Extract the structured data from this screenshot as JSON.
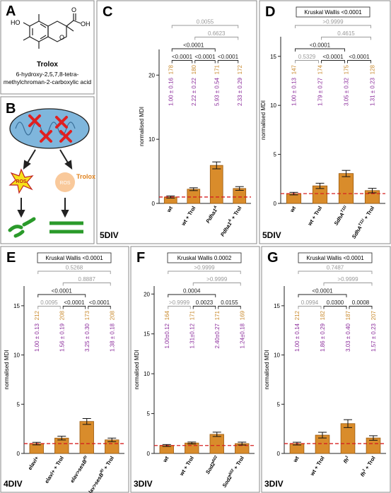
{
  "panel_a": {
    "label": "A",
    "structure_labels": [
      "HO",
      "O",
      "OH"
    ],
    "name": "Trolox",
    "description": [
      "6-hydroxy-2,5,7,8-tetra-",
      "methylchroman-2-carboxylic acid"
    ]
  },
  "panel_b": {
    "label": "B",
    "ros_labels": [
      "ROS",
      "ROS"
    ],
    "trolox": "Trolox"
  },
  "chart_data": [
    {
      "type": "bar",
      "panel": "C",
      "div": "5DIV",
      "y_label": "normalised MDI",
      "categories": [
        "wt",
        "wt + Trol",
        "Pdha1",
        "Pdha1"
      ],
      "category_sup": [
        null,
        null,
        "A",
        "A"
      ],
      "category_suffix": [
        null,
        null,
        null,
        " + Trol"
      ],
      "values": [
        1.0,
        2.22,
        5.93,
        2.33
      ],
      "errors": [
        0.16,
        0.22,
        0.54,
        0.29
      ],
      "value_labels": [
        "1.00 ± 0.16",
        "2.22 ± 0.22",
        "5.93 ± 0.54",
        "2.33 ± 0.29"
      ],
      "counts": [
        178,
        180,
        171,
        172
      ],
      "color": "#d98c2b",
      "ref_line": 1,
      "ref_line_color": "#d62020",
      "ylim": [
        0,
        24
      ],
      "yticks": [
        0,
        10,
        20
      ],
      "comparisons": [
        {
          "pair": [
            0,
            3
          ],
          "label": "0.0055",
          "color": "#999999"
        },
        {
          "pair": [
            1,
            3
          ],
          "label": "0.6623",
          "color": "#999999"
        },
        {
          "pair": [
            0,
            2
          ],
          "label": "<0.0001",
          "color": "#222222"
        },
        {
          "pair": [
            0,
            1
          ],
          "label": "<0.0001",
          "color": "#222222"
        },
        {
          "pair": [
            1,
            2
          ],
          "label": "<0.0001",
          "color": "#222222"
        },
        {
          "pair": [
            2,
            3
          ],
          "label": "<0.0001",
          "color": "#222222"
        }
      ]
    },
    {
      "type": "bar",
      "panel": "D",
      "div": "5DIV",
      "test": "Kruskal Wallis <0.0001",
      "y_label": "normalised MDI",
      "categories": [
        "wt",
        "wt + Trol",
        "SdhA",
        "SdhA"
      ],
      "category_sup": [
        null,
        null,
        "T11I",
        "T11I"
      ],
      "category_suffix": [
        null,
        null,
        null,
        " + Trol"
      ],
      "values": [
        1.0,
        1.79,
        3.05,
        1.31
      ],
      "errors": [
        0.13,
        0.27,
        0.32,
        0.23
      ],
      "value_labels": [
        "1.00 ± 0.13",
        "1.79 ± 0.27",
        "3.05 ± 0.32",
        "1.31 ± 0.23"
      ],
      "counts": [
        147,
        174,
        175,
        128
      ],
      "color": "#d98c2b",
      "ref_line": 1,
      "ref_line_color": "#d62020",
      "ylim": [
        0,
        17
      ],
      "yticks": [
        0,
        5,
        10,
        15
      ],
      "comparisons": [
        {
          "pair": [
            0,
            3
          ],
          "label": ">0.9999",
          "color": "#999999"
        },
        {
          "pair": [
            1,
            3
          ],
          "label": "0.4615",
          "color": "#999999"
        },
        {
          "pair": [
            0,
            2
          ],
          "label": "<0.0001",
          "color": "#222222"
        },
        {
          "pair": [
            0,
            1
          ],
          "label": "0.5329",
          "color": "#999999"
        },
        {
          "pair": [
            1,
            2
          ],
          "label": "<0.0001",
          "color": "#222222"
        },
        {
          "pair": [
            2,
            3
          ],
          "label": "<0.0001",
          "color": "#222222"
        }
      ]
    },
    {
      "type": "bar",
      "panel": "E",
      "div": "4DIV",
      "test": "Kruskal Wallis <0.0001",
      "y_label": "normalised MDI",
      "categories": [
        "elav/+",
        "elav/+ + Trol",
        "elav>sesB",
        "elav>sesB"
      ],
      "category_sup": [
        null,
        null,
        "RI",
        "RI"
      ],
      "category_suffix": [
        null,
        null,
        null,
        " + Trol"
      ],
      "values": [
        1.0,
        1.56,
        3.25,
        1.38
      ],
      "errors": [
        0.13,
        0.19,
        0.3,
        0.18
      ],
      "value_labels": [
        "1.00 ± 0.13",
        "1.56 ± 0.19",
        "3.25 ± 0.30",
        "1.38 ± 0.18"
      ],
      "counts": [
        212,
        208,
        173,
        208
      ],
      "color": "#d98c2b",
      "ref_line": 1,
      "ref_line_color": "#d62020",
      "ylim": [
        0,
        17
      ],
      "yticks": [
        0,
        5,
        10,
        15
      ],
      "comparisons": [
        {
          "pair": [
            0,
            3
          ],
          "label": "0.5268",
          "color": "#999999"
        },
        {
          "pair": [
            1,
            3
          ],
          "label": "0.8887",
          "color": "#999999"
        },
        {
          "pair": [
            0,
            2
          ],
          "label": "<0.0001",
          "color": "#222222"
        },
        {
          "pair": [
            0,
            1
          ],
          "label": "0.0095",
          "color": "#999999"
        },
        {
          "pair": [
            1,
            2
          ],
          "label": "<0.0001",
          "color": "#222222"
        },
        {
          "pair": [
            2,
            3
          ],
          "label": "<0.0001",
          "color": "#222222"
        }
      ]
    },
    {
      "type": "bar",
      "panel": "F",
      "div": "3DIV",
      "test": "Kruskal Wallis 0.0002",
      "y_label": "normalised MDI",
      "categories": [
        "wt",
        "wt + Trol",
        "Sod2",
        "Sod2"
      ],
      "category_sup": [
        null,
        null,
        "Δ02",
        "Δ02"
      ],
      "category_suffix": [
        null,
        null,
        null,
        " + Trol"
      ],
      "values": [
        1.0,
        1.31,
        2.4,
        1.24
      ],
      "errors": [
        0.12,
        0.12,
        0.27,
        0.18
      ],
      "value_labels": [
        "1.00±0.12",
        "1.31±0.12",
        "2.40±0.27",
        "1.24±0.18"
      ],
      "counts": [
        164,
        171,
        171,
        169
      ],
      "color": "#d98c2b",
      "ref_line": 1,
      "ref_line_color": "#d62020",
      "ylim": [
        0,
        21
      ],
      "yticks": [
        0,
        5,
        10,
        15,
        20
      ],
      "comparisons": [
        {
          "pair": [
            0,
            3
          ],
          "label": ">0.9999",
          "color": "#999999"
        },
        {
          "pair": [
            1,
            3
          ],
          "label": ">0.9999",
          "color": "#999999"
        },
        {
          "pair": [
            0,
            2
          ],
          "label": "0.0004",
          "color": "#222222"
        },
        {
          "pair": [
            0,
            1
          ],
          "label": ">0.9999",
          "color": "#999999"
        },
        {
          "pair": [
            1,
            2
          ],
          "label": "0.0023",
          "color": "#222222"
        },
        {
          "pair": [
            2,
            3
          ],
          "label": "0.0155",
          "color": "#222222"
        }
      ]
    },
    {
      "type": "bar",
      "panel": "G",
      "div": "3DIV",
      "test": "Kruskal Wallis <0.0001",
      "y_label": "normalised MDI",
      "categories": [
        "wt",
        "wt + Trol",
        "fh",
        "fh"
      ],
      "category_sup": [
        null,
        null,
        "1",
        "1"
      ],
      "category_suffix": [
        null,
        null,
        null,
        " + Trol"
      ],
      "values": [
        1.0,
        1.86,
        3.03,
        1.57
      ],
      "errors": [
        0.14,
        0.29,
        0.4,
        0.23
      ],
      "value_labels": [
        "1.00 ± 0.14",
        "1.86 ± 0.29",
        "3.03 ± 0.40",
        "1.57 ± 0.23"
      ],
      "counts": [
        212,
        182,
        187,
        207
      ],
      "color": "#d98c2b",
      "ref_line": 1,
      "ref_line_color": "#d62020",
      "ylim": [
        0,
        17
      ],
      "yticks": [
        0,
        5,
        10,
        15
      ],
      "comparisons": [
        {
          "pair": [
            0,
            3
          ],
          "label": "0.7487",
          "color": "#999999"
        },
        {
          "pair": [
            1,
            3
          ],
          "label": ">0.9999",
          "color": "#999999"
        },
        {
          "pair": [
            0,
            2
          ],
          "label": "<0.0001",
          "color": "#222222"
        },
        {
          "pair": [
            0,
            1
          ],
          "label": "0.0994",
          "color": "#999999"
        },
        {
          "pair": [
            1,
            2
          ],
          "label": "0.0300",
          "color": "#222222"
        },
        {
          "pair": [
            2,
            3
          ],
          "label": "0.0008",
          "color": "#222222"
        }
      ]
    }
  ]
}
